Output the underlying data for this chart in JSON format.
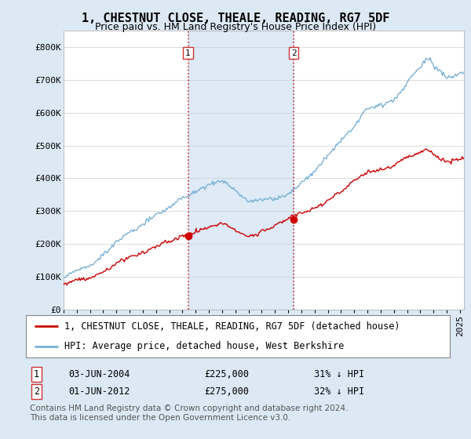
{
  "title": "1, CHESTNUT CLOSE, THEALE, READING, RG7 5DF",
  "subtitle": "Price paid vs. HM Land Registry's House Price Index (HPI)",
  "ylim": [
    0,
    850000
  ],
  "yticks": [
    0,
    100000,
    200000,
    300000,
    400000,
    500000,
    600000,
    700000,
    800000
  ],
  "ytick_labels": [
    "£0",
    "£100K",
    "£200K",
    "£300K",
    "£400K",
    "£500K",
    "£600K",
    "£700K",
    "£800K"
  ],
  "hpi_color": "#7ab0d4",
  "price_color": "#cc0000",
  "sale1_date": 2004.42,
  "sale1_price": 225000,
  "sale2_date": 2012.42,
  "sale2_price": 275000,
  "legend1_text": "1, CHESTNUT CLOSE, THEALE, READING, RG7 5DF (detached house)",
  "legend2_text": "HPI: Average price, detached house, West Berkshire",
  "annotation1_date": "03-JUN-2004",
  "annotation1_price": "£225,000",
  "annotation1_hpi": "31% ↓ HPI",
  "annotation2_date": "01-JUN-2012",
  "annotation2_price": "£275,000",
  "annotation2_hpi": "32% ↓ HPI",
  "footer": "Contains HM Land Registry data © Crown copyright and database right 2024.\nThis data is licensed under the Open Government Licence v3.0.",
  "background_color": "#dce9f5",
  "plot_bg_color": "#ffffff",
  "vline_color": "#cc3333",
  "span_color": "#c8dcf0",
  "title_fontsize": 11,
  "subtitle_fontsize": 9,
  "tick_fontsize": 8,
  "legend_fontsize": 8.5,
  "annot_fontsize": 8.5,
  "footer_fontsize": 7.5
}
